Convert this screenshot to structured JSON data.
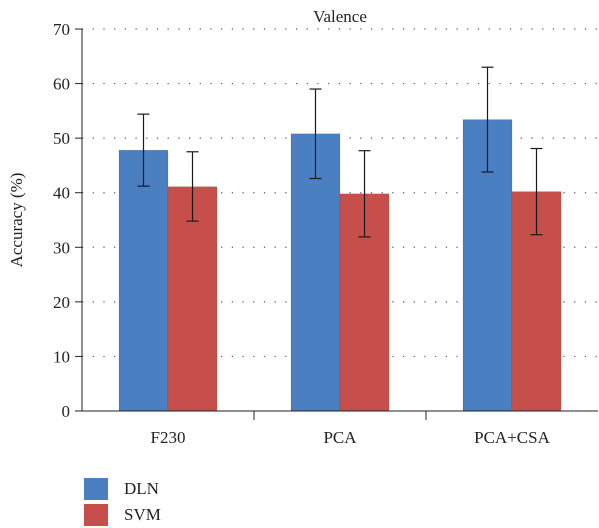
{
  "chart_data": {
    "type": "bar",
    "title": "Valence",
    "xlabel": "",
    "ylabel": "Accuracy (%)",
    "ylim": [
      0,
      70
    ],
    "yticks": [
      0,
      10,
      20,
      30,
      40,
      50,
      60,
      70
    ],
    "grid": "dotted horizontal",
    "legend_position": "bottom-left",
    "categories": [
      "F230",
      "PCA",
      "PCA+CSA"
    ],
    "series": [
      {
        "name": "DLN",
        "color": "#4a7fc1",
        "values": [
          47.8,
          50.8,
          53.4
        ],
        "error": [
          [
            41.2,
            54.4
          ],
          [
            42.6,
            59.0
          ],
          [
            43.8,
            63.0
          ]
        ]
      },
      {
        "name": "SVM",
        "color": "#c64f4c",
        "values": [
          41.1,
          39.8,
          40.2
        ],
        "error": [
          [
            34.8,
            47.5
          ],
          [
            31.9,
            47.7
          ],
          [
            32.3,
            48.1
          ]
        ]
      }
    ]
  }
}
